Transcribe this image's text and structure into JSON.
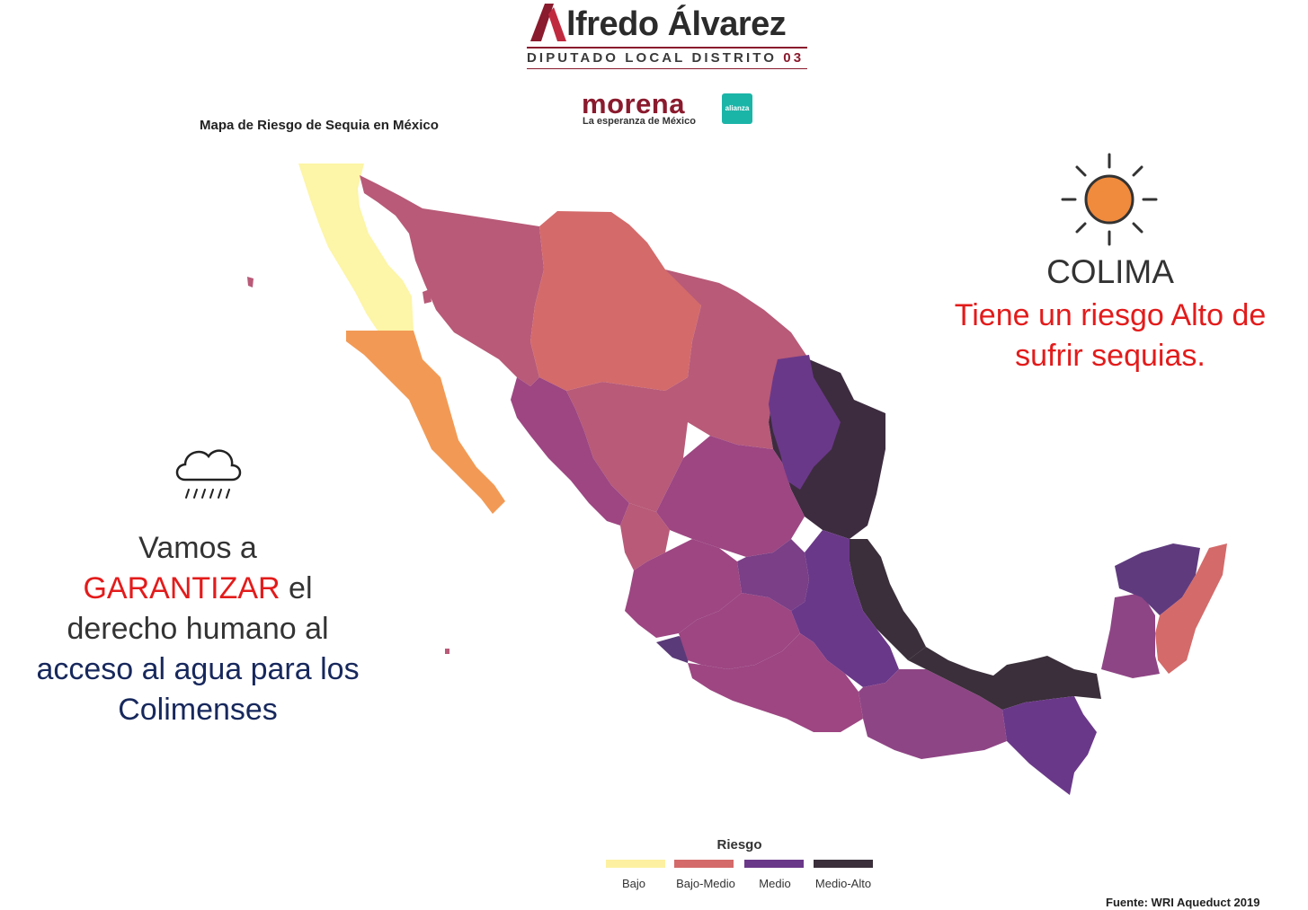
{
  "header": {
    "brand_name": "lfredo Álvarez",
    "role_text": "DIPUTADO LOCAL DISTRITO ",
    "role_number": "03",
    "party_name": "morena",
    "party_tagline": "La esperanza de México",
    "alliance_label": "alianza"
  },
  "map": {
    "title": "Mapa de Riesgo de Sequia en México",
    "colors": {
      "bajo": "#fdf5a7",
      "bajo_medio": "#d46a6a",
      "medio_rosa": "#b85a78",
      "medio_magenta": "#9d4682",
      "medio": "#6a3889",
      "medio_alto": "#3d2c3f",
      "naranja": "#f29a55"
    },
    "legend": {
      "title": "Riesgo",
      "items": [
        {
          "label": "Bajo",
          "color": "#fdf0a0"
        },
        {
          "label": "Bajo-Medio",
          "color": "#d46a6a"
        },
        {
          "label": "Medio",
          "color": "#6a3889"
        },
        {
          "label": "Medio-Alto",
          "color": "#3a2f3a"
        }
      ]
    },
    "source": "Fuente: WRI Aqueduct 2019"
  },
  "right_panel": {
    "icon": "sun-icon",
    "state": "COLIMA",
    "message_line1": "Tiene un riesgo Alto de",
    "message_line2": "sufrir sequias."
  },
  "left_panel": {
    "icon": "rain-cloud-icon",
    "line1": "Vamos a",
    "line2_emph": "GARANTIZAR",
    "line2_rest": " el",
    "line3": "derecho humano al",
    "line4": "acceso al agua para los",
    "line5": "Colimenses"
  }
}
